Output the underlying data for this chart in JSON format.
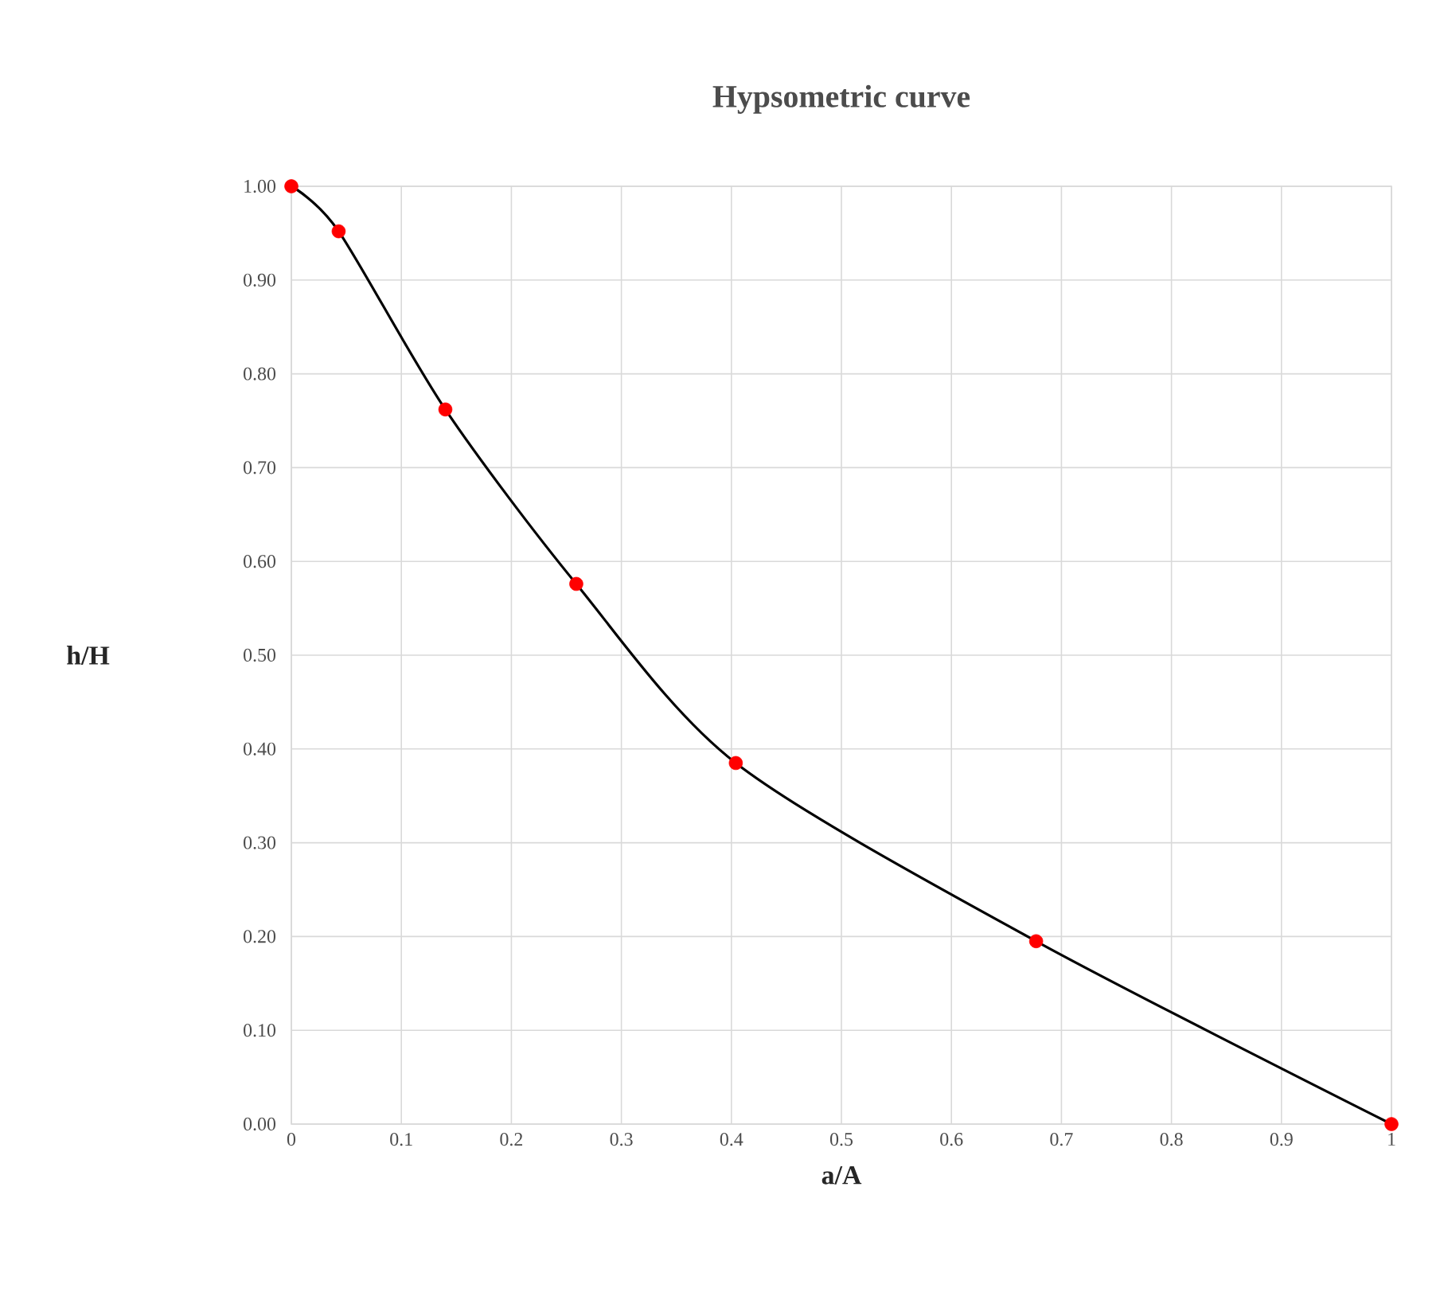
{
  "chart_data": {
    "type": "line",
    "title": "Hypsometric curve",
    "xlabel": "a/A",
    "ylabel": "h/H",
    "series": [
      {
        "marker": "none",
        "color": "#000000",
        "x": [
          0,
          0.043,
          0.14,
          0.259,
          0.404,
          0.677,
          1
        ],
        "values": [
          1.0,
          0.952,
          0.762,
          0.576,
          0.385,
          0.195,
          0.0
        ]
      },
      {
        "type": "scatter",
        "marker": "circle",
        "color": "#ff0000",
        "x": [
          0,
          0.043,
          0.14,
          0.259,
          0.404,
          0.677,
          1
        ],
        "values": [
          1.0,
          0.952,
          0.762,
          0.576,
          0.385,
          0.195,
          0.0
        ]
      }
    ],
    "xlim": [
      0,
      1
    ],
    "ylim": [
      0,
      1
    ],
    "xticks": [
      0,
      0.1,
      0.2,
      0.3,
      0.4,
      0.5,
      0.6,
      0.7,
      0.8,
      0.9,
      1
    ],
    "yticks": [
      {
        "value": 0,
        "label": "0.00"
      },
      {
        "value": 0.1,
        "label": "0.10"
      },
      {
        "value": 0.2,
        "label": "0.20"
      },
      {
        "value": 0.3,
        "label": "0.30"
      },
      {
        "value": 0.4,
        "label": "0.40"
      },
      {
        "value": 0.5,
        "label": "0.50"
      },
      {
        "value": 0.6,
        "label": "0.60"
      },
      {
        "value": 0.7,
        "label": "0.70"
      },
      {
        "value": 0.8,
        "label": "0.80"
      },
      {
        "value": 0.9,
        "label": "0.90"
      },
      {
        "value": 1,
        "label": "1.00"
      }
    ],
    "grid": true
  }
}
